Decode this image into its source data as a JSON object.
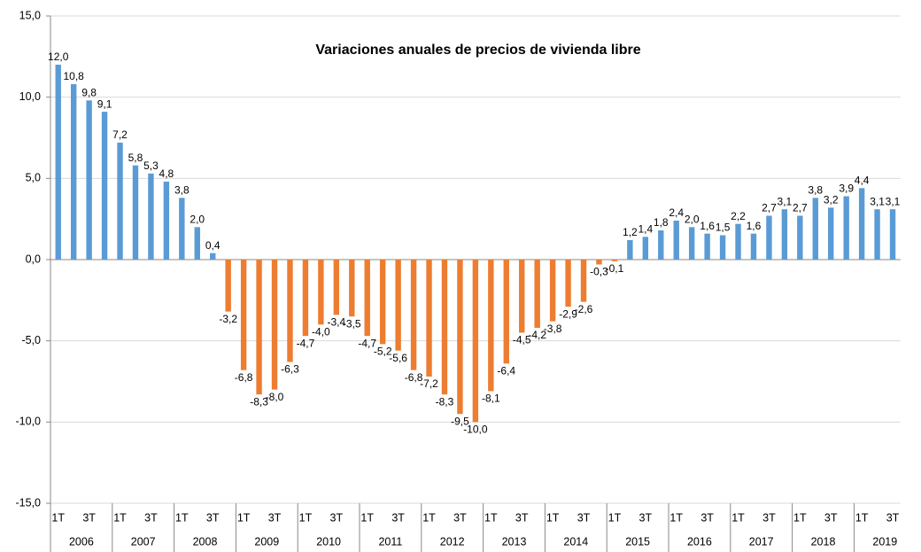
{
  "chart_data": {
    "type": "bar",
    "title": "Variaciones anuales de precios de vivienda libre",
    "categories": [
      "1T",
      null,
      "3T",
      null,
      "1T",
      null,
      "3T",
      null,
      "1T",
      null,
      "3T",
      null,
      "1T",
      null,
      "3T",
      null,
      "1T",
      null,
      "3T",
      null,
      "1T",
      null,
      "3T",
      null,
      "1T",
      null,
      "3T",
      null,
      "1T",
      null,
      "3T",
      null,
      "1T",
      null,
      "3T",
      null,
      "1T",
      null,
      "3T",
      null,
      "1T",
      null,
      "3T",
      null,
      "1T",
      null,
      "3T",
      null,
      "1T",
      null,
      "3T",
      null,
      "1T",
      null,
      "3T"
    ],
    "years": [
      "2006",
      "2007",
      "2008",
      "2009",
      "2010",
      "2011",
      "2012",
      "2013",
      "2014",
      "2015",
      "2016",
      "2017",
      "2018",
      "2019"
    ],
    "values": [
      12.0,
      10.8,
      9.8,
      9.1,
      7.2,
      5.8,
      5.3,
      4.8,
      3.8,
      2.0,
      0.4,
      -3.2,
      -6.8,
      -8.3,
      -8.0,
      -6.3,
      -4.7,
      -4.0,
      -3.4,
      -3.5,
      -4.7,
      -5.2,
      -5.6,
      -6.8,
      -7.2,
      -8.3,
      -9.5,
      -10.0,
      -8.1,
      -6.4,
      -4.5,
      -4.2,
      -3.8,
      -2.9,
      -2.6,
      -0.3,
      -0.1,
      1.2,
      1.4,
      1.8,
      2.4,
      2.0,
      1.6,
      1.5,
      2.2,
      1.6,
      2.7,
      3.1,
      2.7,
      3.8,
      3.2,
      3.9,
      4.4,
      3.1,
      3.1
    ],
    "value_labels": [
      "12,0",
      "10,8",
      "9,8",
      "9,1",
      "7,2",
      "5,8",
      "5,3",
      "4,8",
      "3,8",
      "2,0",
      "0,4",
      "-3,2",
      "-6,8",
      "-8,3",
      "-8,0",
      "-6,3",
      "-4,7",
      "-4,0",
      "-3,4",
      "-3,5",
      "-4,7",
      "-5,2",
      "-5,6",
      "-6,8",
      "-7,2",
      "-8,3",
      "-9,5",
      "-10,0",
      "-8,1",
      "-6,4",
      "-4,5",
      "-4,2",
      "-3,8",
      "-2,9",
      "-2,6",
      "-0,3",
      "-0,1",
      "1,2",
      "1,4",
      "1,8",
      "2,4",
      "2,0",
      "1,6",
      "1,5",
      "2,2",
      "1,6",
      "2,7",
      "3,1",
      "2,7",
      "3,8",
      "3,2",
      "3,9",
      "4,4",
      "3,1",
      "3,1"
    ],
    "colors": {
      "positive": "#5b9bd5",
      "negative": "#ed7d31"
    },
    "ylim": [
      -15,
      15
    ],
    "yticks": [
      {
        "value": -15,
        "label": "-15,0"
      },
      {
        "value": -10,
        "label": "-10,0"
      },
      {
        "value": -5,
        "label": "-5,0"
      },
      {
        "value": 0,
        "label": "0,0"
      },
      {
        "value": 5,
        "label": "5,0"
      },
      {
        "value": 10,
        "label": "10,0"
      },
      {
        "value": 15,
        "label": "15,0"
      }
    ],
    "grid": true
  }
}
